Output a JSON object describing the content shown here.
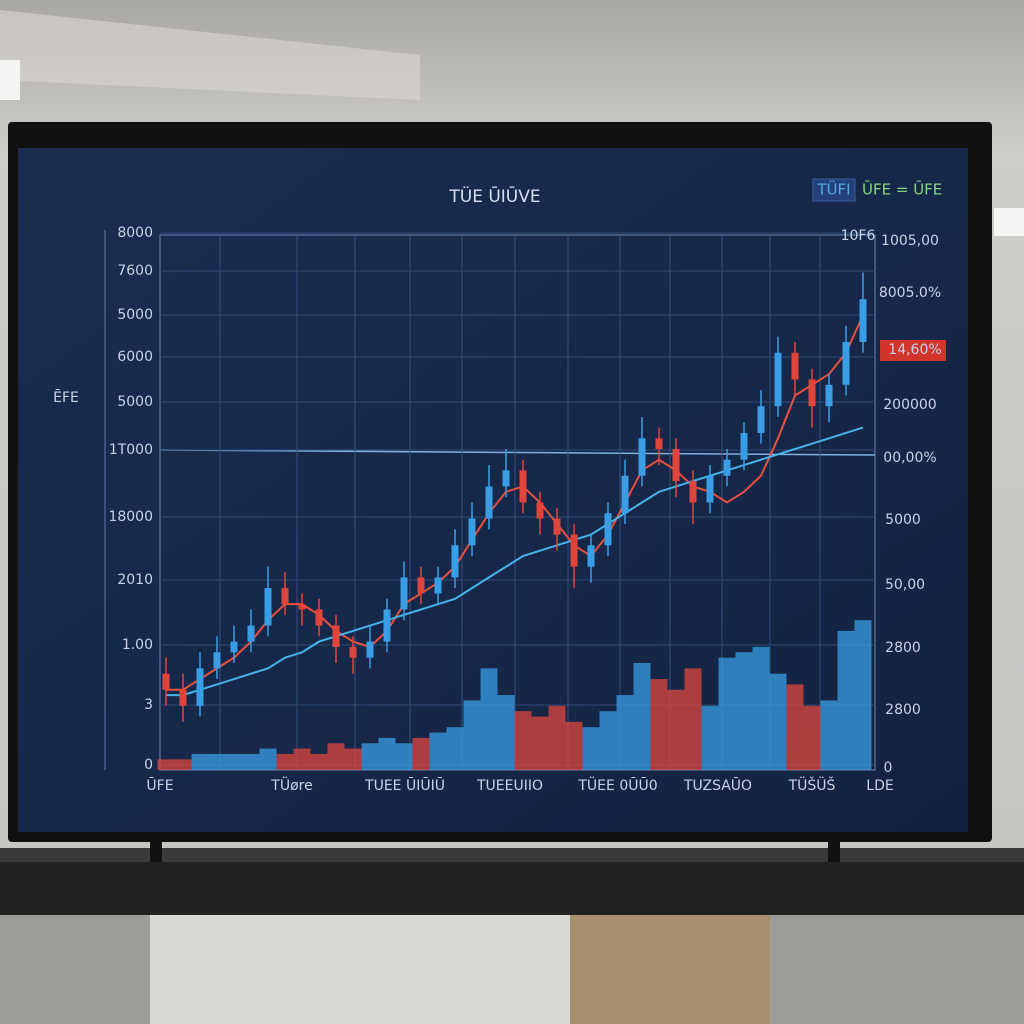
{
  "chart_data": {
    "type": "candlestick",
    "title": "TÜE ŪIŪVE",
    "y_label": "ĒFE",
    "legend": [
      {
        "name": "TÜFI",
        "color": "#5aa8e8"
      },
      {
        "name": "ŪFE = ŪFE",
        "color": "#86d67c"
      }
    ],
    "ylim": [
      0,
      100
    ],
    "left_labels": [
      "8000",
      "7600",
      "5000",
      "6000",
      "5000",
      "1Т000",
      "18000",
      "2010",
      "1.00",
      "3",
      "0"
    ],
    "right_labels": [
      "10F6",
      "1005,00",
      "8005.0%",
      "14,60%",
      "200000",
      "00,00%",
      "5000",
      "50,00",
      "2800",
      "2800",
      "0"
    ],
    "x_labels": [
      "ŪFE",
      "TÜøre",
      "TUEE ŪIŪIŪ",
      "TUEEUIIO",
      "TÜEE 0ŪŪ0",
      "TUZSAŪO",
      "TÜŠÜŠ",
      "LDE"
    ],
    "up_color": "#3a9ee6",
    "down_color": "#e0453c",
    "open": [
      18,
      15,
      12,
      19,
      22,
      24,
      27,
      34,
      31,
      30,
      27,
      23,
      21,
      24,
      30,
      36,
      33,
      36,
      42,
      47,
      53,
      56,
      50,
      47,
      44,
      38,
      42,
      48,
      55,
      62,
      60,
      54,
      50,
      55,
      58,
      63,
      68,
      78,
      73,
      68,
      72,
      80
    ],
    "high": [
      21,
      18,
      22,
      25,
      27,
      30,
      38,
      37,
      33,
      32,
      29,
      25,
      27,
      32,
      39,
      38,
      38,
      45,
      50,
      57,
      60,
      58,
      52,
      49,
      46,
      44,
      50,
      58,
      66,
      64,
      62,
      56,
      57,
      60,
      65,
      71,
      81,
      80,
      75,
      74,
      83,
      93
    ],
    "low": [
      12,
      9,
      10,
      17,
      20,
      22,
      25,
      29,
      27,
      25,
      20,
      18,
      19,
      22,
      28,
      31,
      31,
      34,
      40,
      45,
      51,
      48,
      44,
      41,
      34,
      35,
      40,
      46,
      53,
      57,
      51,
      46,
      48,
      53,
      56,
      61,
      66,
      70,
      64,
      65,
      70,
      78
    ],
    "close": [
      15,
      12,
      19,
      22,
      24,
      27,
      34,
      31,
      30,
      27,
      23,
      21,
      24,
      30,
      36,
      33,
      36,
      42,
      47,
      53,
      56,
      50,
      47,
      44,
      38,
      42,
      48,
      55,
      62,
      60,
      54,
      50,
      55,
      58,
      63,
      68,
      78,
      73,
      68,
      72,
      80,
      88
    ],
    "volume": [
      2,
      2,
      3,
      3,
      3,
      3,
      4,
      3,
      4,
      3,
      5,
      4,
      5,
      6,
      5,
      6,
      7,
      8,
      13,
      19,
      14,
      11,
      10,
      12,
      9,
      8,
      11,
      14,
      20,
      17,
      15,
      19,
      12,
      21,
      22,
      23,
      18,
      16,
      12,
      13,
      26,
      28
    ],
    "lines": [
      {
        "color": "#e8503e",
        "values": [
          15,
          15,
          17,
          19,
          21,
          24,
          28,
          31,
          31,
          29,
          26,
          24,
          23,
          26,
          31,
          33,
          35,
          38,
          43,
          48,
          52,
          53,
          50,
          46,
          42,
          40,
          44,
          50,
          56,
          58,
          56,
          53,
          52,
          50,
          52,
          55,
          62,
          70,
          72,
          74,
          78,
          85
        ]
      },
      {
        "color": "#46b4ea",
        "values": [
          14,
          14,
          15,
          16,
          17,
          18,
          19,
          21,
          22,
          24,
          25,
          26,
          27,
          28,
          29,
          30,
          31,
          32,
          34,
          36,
          38,
          40,
          41,
          42,
          43,
          44,
          46,
          48,
          50,
          52,
          53,
          54,
          55,
          56,
          57,
          58,
          59,
          60,
          61,
          62,
          63,
          64
        ]
      }
    ]
  }
}
